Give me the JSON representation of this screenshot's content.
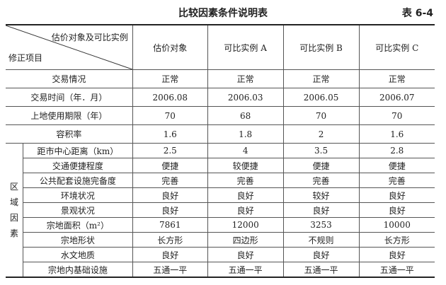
{
  "title": "比较因素条件说明表",
  "table_number": "表 6-4",
  "header": {
    "diag_top": "估价对象及可比实例",
    "diag_bottom": "修正项目",
    "columns": [
      "估价对象",
      "可比实例 A",
      "可比实例 B",
      "可比实例 C"
    ]
  },
  "top_rows": [
    {
      "label": "交易情况",
      "values": [
        "正常",
        "正常",
        "正常",
        "正常"
      ]
    },
    {
      "label": "交易时间（年．月）",
      "values": [
        "2006.08",
        "2006.03",
        "2006.05",
        "2006.07"
      ]
    },
    {
      "label": "上地使用期限（年）",
      "values": [
        "70",
        "68",
        "70",
        "70"
      ]
    },
    {
      "label": "容积率",
      "values": [
        "1.6",
        "1.8",
        "2",
        "1.6"
      ]
    }
  ],
  "region_group": "区域因素",
  "region_group_chars": [
    "区",
    "域",
    "因",
    "素"
  ],
  "region_rows": [
    {
      "label": "距市中心距离（km）",
      "values": [
        "2.5",
        "4",
        "3.5",
        "2.8"
      ]
    },
    {
      "label": "交通便捷程度",
      "values": [
        "便捷",
        "较便捷",
        "便捷",
        "便捷"
      ]
    },
    {
      "label": "公共配套设施完备度",
      "values": [
        "完善",
        "完善",
        "完善",
        "完善"
      ]
    },
    {
      "label": "环境状况",
      "values": [
        "良好",
        "良好",
        "较好",
        "良好"
      ]
    },
    {
      "label": "景观状况",
      "values": [
        "良好",
        "良好",
        "良好",
        "良好"
      ]
    },
    {
      "label": "宗地面积（m²）",
      "values": [
        "7861",
        "12000",
        "3253",
        "10000"
      ]
    },
    {
      "label": "宗地形状",
      "values": [
        "长方形",
        "四边形",
        "不规则",
        "长方形"
      ]
    },
    {
      "label": "水文地质",
      "values": [
        "良好",
        "良好",
        "良好",
        "良好"
      ]
    },
    {
      "label": "宗地内基础设施",
      "values": [
        "五通一平",
        "五通一平",
        "五通一平",
        "五通一平"
      ]
    }
  ]
}
